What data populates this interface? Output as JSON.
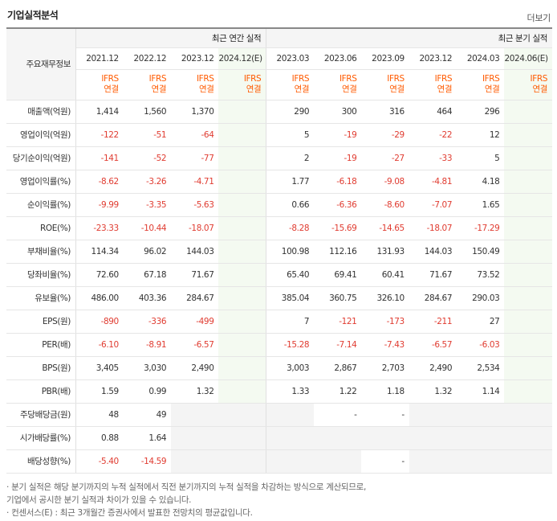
{
  "header": {
    "title": "기업실적분석",
    "more": "더보기"
  },
  "table": {
    "label_header": "주요재무정보",
    "annual_group": "최근 연간 실적",
    "quarter_group": "최근 분기 실적",
    "annual_periods": [
      "2021.12",
      "2022.12",
      "2023.12",
      "2024.12(E)"
    ],
    "quarter_periods": [
      "2023.03",
      "2023.06",
      "2023.09",
      "2023.12",
      "2024.03",
      "2024.06(E)"
    ],
    "ifrs_line1": "IFRS",
    "ifrs_line2": "연결",
    "rows": [
      {
        "label": "매출액(억원)",
        "values": [
          "1,414",
          "1,560",
          "1,370",
          "",
          "290",
          "300",
          "316",
          "464",
          "296",
          ""
        ]
      },
      {
        "label": "영업이익(억원)",
        "values": [
          "-122",
          "-51",
          "-64",
          "",
          "5",
          "-19",
          "-29",
          "-22",
          "12",
          ""
        ]
      },
      {
        "label": "당기순이익(억원)",
        "values": [
          "-141",
          "-52",
          "-77",
          "",
          "2",
          "-19",
          "-27",
          "-33",
          "5",
          ""
        ]
      },
      {
        "label": "영업이익률(%)",
        "values": [
          "-8.62",
          "-3.26",
          "-4.71",
          "",
          "1.77",
          "-6.18",
          "-9.08",
          "-4.81",
          "4.18",
          ""
        ]
      },
      {
        "label": "순이익률(%)",
        "values": [
          "-9.99",
          "-3.35",
          "-5.63",
          "",
          "0.66",
          "-6.36",
          "-8.60",
          "-7.07",
          "1.65",
          ""
        ]
      },
      {
        "label": "ROE(%)",
        "values": [
          "-23.33",
          "-10.44",
          "-18.07",
          "",
          "-8.28",
          "-15.69",
          "-14.65",
          "-18.07",
          "-17.29",
          ""
        ]
      },
      {
        "label": "부채비율(%)",
        "values": [
          "114.34",
          "96.02",
          "144.03",
          "",
          "100.98",
          "112.16",
          "131.93",
          "144.03",
          "150.49",
          ""
        ]
      },
      {
        "label": "당좌비율(%)",
        "values": [
          "72.60",
          "67.18",
          "71.67",
          "",
          "65.40",
          "69.41",
          "60.41",
          "71.67",
          "73.52",
          ""
        ]
      },
      {
        "label": "유보율(%)",
        "values": [
          "486.00",
          "403.36",
          "284.67",
          "",
          "385.04",
          "360.75",
          "326.10",
          "284.67",
          "290.03",
          ""
        ]
      },
      {
        "label": "EPS(원)",
        "values": [
          "-890",
          "-336",
          "-499",
          "",
          "7",
          "-121",
          "-173",
          "-211",
          "27",
          ""
        ]
      },
      {
        "label": "PER(배)",
        "values": [
          "-6.10",
          "-8.91",
          "-6.57",
          "",
          "-15.28",
          "-7.14",
          "-7.43",
          "-6.57",
          "-6.03",
          ""
        ]
      },
      {
        "label": "BPS(원)",
        "values": [
          "3,405",
          "3,030",
          "2,490",
          "",
          "3,003",
          "2,867",
          "2,703",
          "2,490",
          "2,534",
          ""
        ]
      },
      {
        "label": "PBR(배)",
        "values": [
          "1.59",
          "0.99",
          "1.32",
          "",
          "1.33",
          "1.22",
          "1.18",
          "1.32",
          "1.14",
          ""
        ]
      },
      {
        "label": "주당배당금(원)",
        "values": [
          "48",
          "49",
          "",
          "",
          "",
          "-",
          "-",
          "",
          "",
          ""
        ]
      },
      {
        "label": "시가배당률(%)",
        "values": [
          "0.88",
          "1.64",
          "",
          "",
          "",
          "",
          "",
          "",
          "",
          ""
        ]
      },
      {
        "label": "배당성향(%)",
        "values": [
          "-5.40",
          "-14.59",
          "",
          "",
          "",
          "",
          "-",
          "",
          "",
          ""
        ]
      }
    ]
  },
  "notes": {
    "line1": "· 분기 실적은 해당 분기까지의 누적 실적에서 직전 분기까지의 누적 실적을 차감하는 방식으로 계산되므로,",
    "line2": "  기업에서 공시한 분기 실적과 차이가 있을 수 있습니다.",
    "line3": "· 컨센서스(E) : 최근 3개월간 증권사에서 발표한 전망치의 평균값입니다."
  },
  "colors": {
    "negative": "#e03c31",
    "ifrs": "#ff5a00",
    "estimate_bg": "#f4faf1"
  }
}
